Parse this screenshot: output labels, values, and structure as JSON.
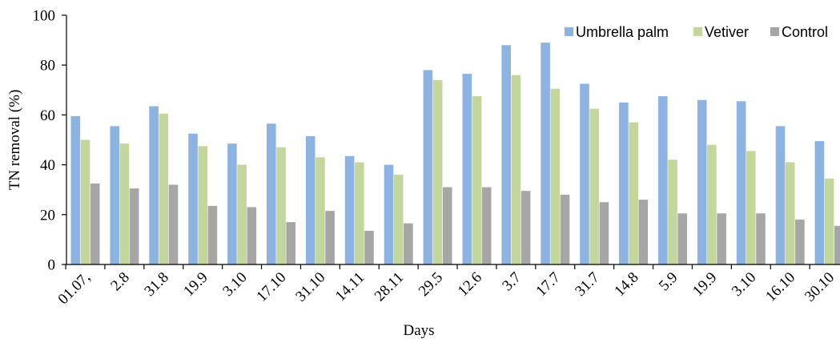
{
  "chart_data": {
    "type": "bar",
    "title": "",
    "xlabel": "Days",
    "ylabel": "TN removal (%)",
    "ylim": [
      0,
      100
    ],
    "yticks": [
      0,
      20,
      40,
      60,
      80,
      100
    ],
    "grid": false,
    "legend_position": "top-right",
    "categories": [
      "01.07,",
      "2.8",
      "31.8",
      "19.9",
      "3.10",
      "17.10",
      "31.10",
      "14.11",
      "28.11",
      "29.5",
      "12.6",
      "3.7",
      "17.7",
      "31.7",
      "14.8",
      "5.9",
      "19.9",
      "3.10",
      "16.10",
      "30.10"
    ],
    "series": [
      {
        "name": "Umbrella palm",
        "color": "#8DB3E2",
        "values": [
          59.5,
          55.5,
          63.5,
          52.5,
          48.5,
          56.5,
          51.5,
          43.5,
          40,
          78,
          76.5,
          88,
          89,
          72.5,
          65,
          67.5,
          66,
          65.5,
          55.5,
          49.5
        ]
      },
      {
        "name": "Vetiver",
        "color": "#C3D69B",
        "values": [
          50,
          48.5,
          60.5,
          47.5,
          40,
          47,
          43,
          41,
          36,
          74,
          67.5,
          76,
          70.5,
          62.5,
          57,
          42,
          48,
          45.5,
          41,
          34.5
        ]
      },
      {
        "name": "Control",
        "color": "#A6A6A6",
        "values": [
          32.5,
          30.5,
          32,
          23.5,
          23,
          17,
          21.5,
          13.5,
          16.5,
          31,
          31,
          29.5,
          28,
          25,
          26,
          20.5,
          20.5,
          20.5,
          18,
          15.5
        ]
      }
    ]
  }
}
